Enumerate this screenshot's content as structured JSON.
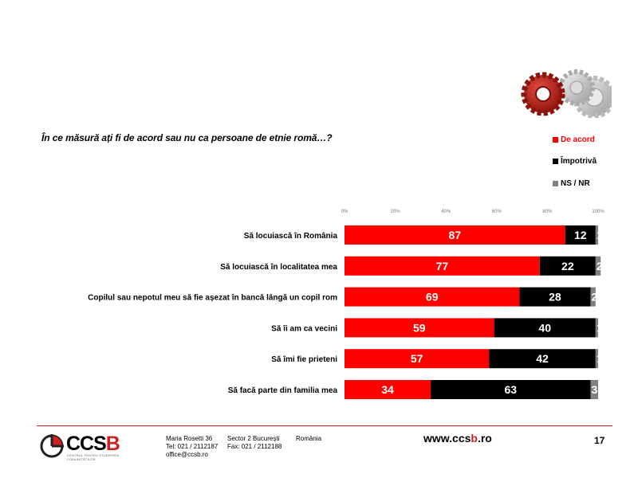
{
  "question": "În ce măsură ați fi de acord sau nu ca persoane de etnie romă…?",
  "colors": {
    "agree": "#ff0000",
    "against": "#000000",
    "dk": "#808080",
    "accent": "#cc2222"
  },
  "legend": [
    {
      "label": "De acord",
      "color": "#ff0000",
      "text_color": "#ff0000"
    },
    {
      "label": "Împotrivă",
      "color": "#000000",
      "text_color": "#000000"
    },
    {
      "label": "NS / NR",
      "color": "#808080",
      "text_color": "#000000"
    }
  ],
  "chart_data": {
    "type": "bar",
    "orientation": "horizontal",
    "stacked": true,
    "xlim": [
      0,
      100
    ],
    "xticks": [
      "0%",
      "20%",
      "40%",
      "60%",
      "80%",
      "100%"
    ],
    "categories": [
      "Să locuiască în România",
      "Să locuiască în localitatea mea",
      "Copilul sau nepotul meu să fie așezat în bancă lângă un copil rom",
      "Să îi am ca vecini",
      "Să îmi fie prieteni",
      "Să facă parte din familia mea"
    ],
    "series": [
      {
        "name": "De acord",
        "color": "#ff0000",
        "values": [
          87,
          77,
          69,
          59,
          57,
          34
        ]
      },
      {
        "name": "Împotrivă",
        "color": "#000000",
        "values": [
          12,
          22,
          28,
          40,
          42,
          63
        ]
      },
      {
        "name": "NS / NR",
        "color": "#808080",
        "values": [
          1,
          2,
          2,
          1,
          1,
          3
        ]
      }
    ],
    "legend_position": "top-right",
    "grid": false
  },
  "footer": {
    "logo_text_black": "CCS",
    "logo_text_red": "B",
    "logo_sub": "CENTRUL PENTRU STUDIEREA COMUNITĂȚILOR",
    "address_line1": "Maria Rosetti 36",
    "address_line2": "Tel: 021 / 2112187",
    "address_line3": "office@ccsb.ro",
    "sector": "Sector 2  București",
    "fax": "Fax: 021 / 2112188",
    "country": "România",
    "web_prefix": "www.ccs",
    "web_accent": "b",
    "web_suffix": ".ro",
    "page_number": "17"
  },
  "icons": {
    "decor": "gears-icon"
  }
}
